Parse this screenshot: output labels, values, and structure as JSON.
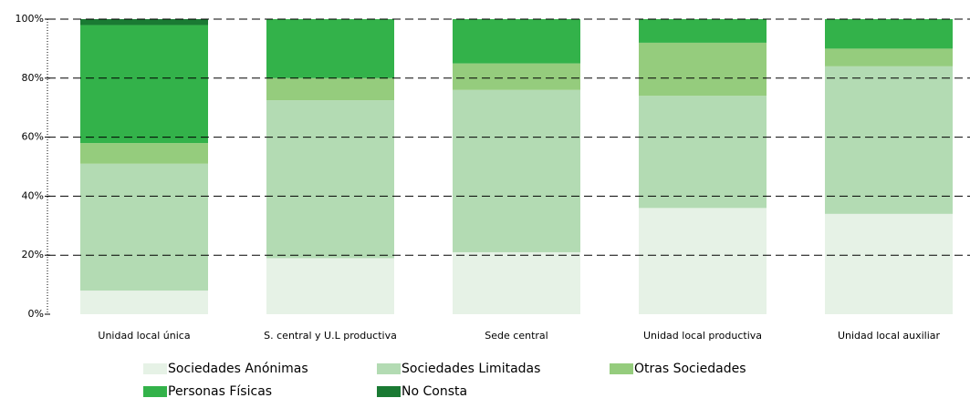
{
  "chart_data": {
    "type": "stacked_bar",
    "categories": [
      "Unidad local única",
      "S. central y U.L productiva",
      "Sede central",
      "Unidad local productiva",
      "Unidad local auxiliar"
    ],
    "series": [
      {
        "name": "Sociedades Anónimas",
        "color": "#e6f2e6",
        "values": [
          8,
          19,
          21,
          36,
          34
        ]
      },
      {
        "name": "Sociedades Limitadas",
        "color": "#b3dbb3",
        "values": [
          43,
          53.5,
          55,
          38,
          50
        ]
      },
      {
        "name": "Otras Sociedades",
        "color": "#95cc7d",
        "values": [
          7,
          7.5,
          9,
          18,
          6
        ]
      },
      {
        "name": "Personas Físicas",
        "color": "#33b24a",
        "values": [
          40,
          20,
          15,
          8,
          10
        ]
      },
      {
        "name": "No Consta",
        "color": "#1a7a33",
        "values": [
          2,
          0,
          0,
          0,
          0
        ]
      }
    ],
    "ylim": [
      0,
      100
    ],
    "yticks": [
      {
        "value": 0,
        "label": "0%"
      },
      {
        "value": 20,
        "label": "20%"
      },
      {
        "value": 40,
        "label": "40%"
      },
      {
        "value": 60,
        "label": "60%"
      },
      {
        "value": 80,
        "label": "80%"
      },
      {
        "value": 100,
        "label": "100%"
      }
    ],
    "grid": true
  }
}
